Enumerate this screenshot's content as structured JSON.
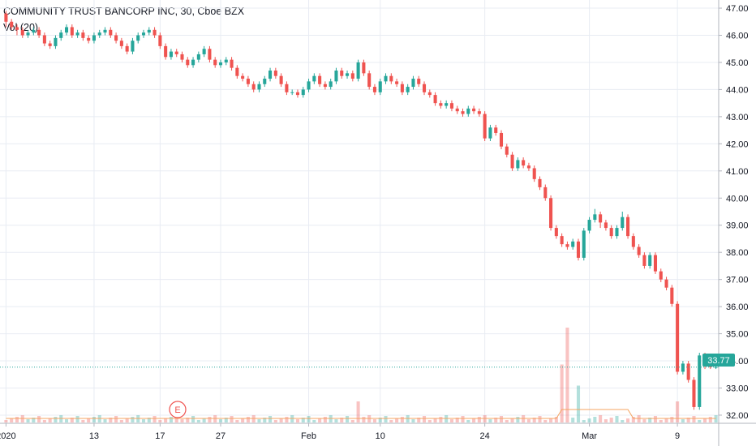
{
  "header": {
    "symbol_title": "COMMUNITY TRUST BANCORP INC, 30, Cboe BZX",
    "volume_indicator": "Vol (20)"
  },
  "earnings_marker": {
    "label": "E"
  },
  "price_badge": {
    "value": "33.77",
    "color": "#26a69a"
  },
  "colors": {
    "up": "#26a69a",
    "down": "#ef5350",
    "volume_ma": "#f4a460",
    "grid": "#e8ecf3"
  },
  "chart_data": {
    "type": "candlestick",
    "title": "COMMUNITY TRUST BANCORP INC, 30, Cboe BZX",
    "ylim": [
      31.7,
      47.3
    ],
    "y_ticks": [
      "47.00",
      "46.00",
      "45.00",
      "44.00",
      "43.00",
      "42.00",
      "41.00",
      "40.00",
      "39.00",
      "38.00",
      "37.00",
      "36.00",
      "35.00",
      "34.00",
      "33.00",
      "32.00"
    ],
    "x_ticks": [
      {
        "label": "2020",
        "slot": 0
      },
      {
        "label": "13",
        "slot": 16
      },
      {
        "label": "17",
        "slot": 28
      },
      {
        "label": "27",
        "slot": 39
      },
      {
        "label": "Feb",
        "slot": 55
      },
      {
        "label": "10",
        "slot": 68
      },
      {
        "label": "24",
        "slot": 87
      },
      {
        "label": "Mar",
        "slot": 106
      },
      {
        "label": "9",
        "slot": 122
      }
    ],
    "slot_count": 130,
    "last_price": 33.77,
    "candles": [
      [
        46.8,
        46.5,
        46.9,
        46.3
      ],
      [
        46.5,
        46.3,
        46.6,
        46.2
      ],
      [
        46.3,
        46.2,
        46.4,
        46.0
      ],
      [
        46.2,
        46.0,
        46.3,
        45.9
      ],
      [
        46.0,
        46.1,
        46.2,
        45.9
      ],
      [
        46.1,
        46.2,
        46.3,
        46.0
      ],
      [
        46.2,
        46.0,
        46.3,
        45.9
      ],
      [
        46.0,
        45.7,
        46.1,
        45.6
      ],
      [
        45.7,
        45.6,
        45.8,
        45.5
      ],
      [
        45.6,
        45.9,
        46.0,
        45.5
      ],
      [
        45.9,
        46.1,
        46.2,
        45.8
      ],
      [
        46.1,
        46.3,
        46.4,
        46.0
      ],
      [
        46.3,
        46.0,
        46.4,
        45.9
      ],
      [
        46.0,
        46.1,
        46.2,
        45.9
      ],
      [
        46.1,
        45.9,
        46.2,
        45.8
      ],
      [
        45.9,
        45.8,
        46.0,
        45.7
      ],
      [
        45.8,
        46.0,
        46.1,
        45.7
      ],
      [
        46.0,
        46.1,
        46.2,
        45.9
      ],
      [
        46.1,
        46.2,
        46.3,
        46.0
      ],
      [
        46.2,
        46.0,
        46.3,
        45.9
      ],
      [
        46.0,
        45.8,
        46.1,
        45.7
      ],
      [
        45.8,
        45.6,
        45.9,
        45.5
      ],
      [
        45.6,
        45.4,
        45.7,
        45.3
      ],
      [
        45.4,
        45.8,
        45.9,
        45.3
      ],
      [
        45.8,
        46.0,
        46.1,
        45.7
      ],
      [
        46.0,
        46.1,
        46.2,
        45.9
      ],
      [
        46.1,
        46.2,
        46.3,
        46.0
      ],
      [
        46.2,
        46.0,
        46.3,
        45.9
      ],
      [
        46.0,
        45.6,
        46.1,
        45.5
      ],
      [
        45.6,
        45.2,
        45.7,
        45.1
      ],
      [
        45.2,
        45.4,
        45.5,
        45.1
      ],
      [
        45.4,
        45.3,
        45.5,
        45.2
      ],
      [
        45.3,
        45.1,
        45.4,
        45.0
      ],
      [
        45.1,
        44.9,
        45.2,
        44.8
      ],
      [
        44.9,
        45.1,
        45.2,
        44.8
      ],
      [
        45.1,
        45.3,
        45.4,
        45.0
      ],
      [
        45.3,
        45.5,
        45.6,
        45.2
      ],
      [
        45.5,
        45.1,
        45.6,
        45.0
      ],
      [
        45.1,
        44.9,
        45.2,
        44.8
      ],
      [
        44.9,
        45.0,
        45.1,
        44.8
      ],
      [
        45.0,
        45.1,
        45.2,
        44.9
      ],
      [
        45.1,
        44.8,
        45.2,
        44.7
      ],
      [
        44.8,
        44.5,
        44.9,
        44.4
      ],
      [
        44.5,
        44.4,
        44.6,
        44.3
      ],
      [
        44.4,
        44.2,
        44.5,
        44.1
      ],
      [
        44.2,
        44.0,
        44.3,
        43.9
      ],
      [
        44.0,
        44.2,
        44.3,
        43.9
      ],
      [
        44.2,
        44.4,
        44.5,
        44.1
      ],
      [
        44.4,
        44.7,
        44.8,
        44.3
      ],
      [
        44.7,
        44.5,
        44.8,
        44.4
      ],
      [
        44.5,
        44.2,
        44.6,
        44.1
      ],
      [
        44.2,
        43.9,
        44.3,
        43.8
      ],
      [
        43.9,
        43.9,
        44.0,
        43.8
      ],
      [
        43.9,
        43.8,
        44.0,
        43.7
      ],
      [
        43.8,
        44.0,
        44.1,
        43.7
      ],
      [
        44.0,
        44.3,
        44.4,
        43.9
      ],
      [
        44.3,
        44.5,
        44.6,
        44.2
      ],
      [
        44.5,
        44.2,
        44.6,
        44.1
      ],
      [
        44.2,
        44.1,
        44.3,
        44.0
      ],
      [
        44.1,
        44.3,
        44.4,
        44.0
      ],
      [
        44.3,
        44.7,
        44.8,
        44.2
      ],
      [
        44.7,
        44.5,
        44.8,
        44.4
      ],
      [
        44.5,
        44.6,
        44.7,
        44.4
      ],
      [
        44.6,
        44.4,
        44.7,
        44.3
      ],
      [
        44.4,
        45.0,
        45.1,
        44.3
      ],
      [
        45.0,
        44.6,
        45.1,
        44.5
      ],
      [
        44.6,
        44.1,
        44.7,
        44.0
      ],
      [
        44.1,
        43.9,
        44.2,
        43.8
      ],
      [
        43.9,
        44.3,
        44.4,
        43.8
      ],
      [
        44.3,
        44.5,
        44.6,
        44.2
      ],
      [
        44.5,
        44.3,
        44.6,
        44.2
      ],
      [
        44.3,
        44.2,
        44.4,
        44.1
      ],
      [
        44.2,
        43.9,
        44.3,
        43.8
      ],
      [
        43.9,
        44.1,
        44.2,
        43.8
      ],
      [
        44.1,
        44.4,
        44.5,
        44.0
      ],
      [
        44.4,
        44.2,
        44.5,
        44.1
      ],
      [
        44.2,
        43.9,
        44.3,
        43.8
      ],
      [
        43.9,
        43.8,
        44.0,
        43.7
      ],
      [
        43.8,
        43.5,
        43.9,
        43.4
      ],
      [
        43.5,
        43.4,
        43.6,
        43.3
      ],
      [
        43.4,
        43.5,
        43.6,
        43.3
      ],
      [
        43.5,
        43.3,
        43.6,
        43.2
      ],
      [
        43.3,
        43.2,
        43.4,
        43.1
      ],
      [
        43.2,
        43.1,
        43.3,
        43.0
      ],
      [
        43.1,
        43.3,
        43.4,
        43.0
      ],
      [
        43.3,
        43.2,
        43.4,
        43.1
      ],
      [
        43.2,
        43.1,
        43.3,
        43.0
      ],
      [
        43.1,
        42.2,
        43.2,
        42.1
      ],
      [
        42.2,
        42.6,
        42.7,
        42.1
      ],
      [
        42.6,
        42.4,
        42.7,
        42.3
      ],
      [
        42.4,
        41.9,
        42.5,
        41.8
      ],
      [
        41.9,
        41.6,
        42.0,
        41.5
      ],
      [
        41.6,
        41.1,
        41.7,
        41.0
      ],
      [
        41.1,
        41.4,
        41.5,
        41.0
      ],
      [
        41.4,
        41.2,
        41.5,
        41.1
      ],
      [
        41.2,
        41.1,
        41.3,
        41.0
      ],
      [
        41.1,
        40.7,
        41.2,
        40.6
      ],
      [
        40.7,
        40.4,
        40.8,
        40.3
      ],
      [
        40.4,
        40.0,
        40.5,
        39.9
      ],
      [
        40.0,
        38.9,
        40.1,
        38.8
      ],
      [
        38.9,
        38.6,
        39.0,
        38.5
      ],
      [
        38.6,
        38.3,
        38.7,
        38.2
      ],
      [
        38.3,
        38.2,
        38.4,
        38.1
      ],
      [
        38.2,
        38.4,
        38.5,
        38.1
      ],
      [
        38.4,
        37.8,
        38.5,
        37.7
      ],
      [
        37.8,
        38.8,
        38.9,
        37.7
      ],
      [
        38.8,
        39.2,
        39.3,
        38.7
      ],
      [
        39.2,
        39.4,
        39.6,
        39.1
      ],
      [
        39.4,
        39.1,
        39.5,
        38.9
      ],
      [
        39.1,
        38.9,
        39.2,
        38.8
      ],
      [
        38.9,
        38.6,
        39.0,
        38.5
      ],
      [
        38.6,
        38.9,
        39.0,
        38.5
      ],
      [
        38.9,
        39.3,
        39.5,
        38.8
      ],
      [
        39.3,
        38.6,
        39.4,
        38.5
      ],
      [
        38.6,
        38.2,
        38.7,
        38.1
      ],
      [
        38.2,
        37.9,
        38.3,
        37.8
      ],
      [
        37.9,
        37.5,
        38.0,
        37.4
      ],
      [
        37.5,
        37.9,
        38.0,
        37.4
      ],
      [
        37.9,
        37.3,
        38.0,
        37.2
      ],
      [
        37.3,
        37.0,
        37.4,
        36.9
      ],
      [
        37.0,
        36.7,
        37.1,
        36.6
      ],
      [
        36.7,
        36.1,
        36.8,
        36.0
      ],
      [
        36.1,
        33.6,
        36.2,
        33.5
      ],
      [
        33.6,
        33.9,
        34.0,
        33.5
      ],
      [
        33.9,
        33.3,
        34.0,
        33.2
      ],
      [
        33.3,
        32.3,
        33.4,
        32.2
      ],
      [
        32.3,
        34.2,
        34.3,
        32.2
      ],
      [
        34.2,
        33.8,
        34.3,
        33.7
      ],
      [
        33.8,
        33.77,
        33.9,
        33.7
      ],
      [
        33.77,
        33.77,
        33.8,
        33.7
      ]
    ],
    "volume_spike_slots": [
      {
        "slot": 102,
        "height": 0.9,
        "dir": "down"
      },
      {
        "slot": 101,
        "height": 0.55,
        "dir": "down"
      },
      {
        "slot": 104,
        "height": 0.35,
        "dir": "up"
      },
      {
        "slot": 64,
        "height": 0.2,
        "dir": "down"
      },
      {
        "slot": 122,
        "height": 0.2,
        "dir": "down"
      }
    ]
  }
}
